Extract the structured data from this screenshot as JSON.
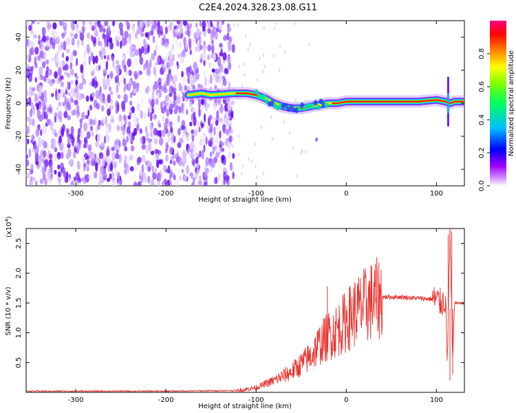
{
  "title": "C2E4.2024.328.23.08.G11",
  "chart_data": [
    {
      "type": "heatmap",
      "xlabel": "Height of straight line (km)",
      "ylabel": "Frequency (Hz)",
      "xlim": [
        -355,
        131
      ],
      "ylim": [
        -50,
        50
      ],
      "xticks": [
        -300,
        -200,
        -100,
        0,
        100
      ],
      "yticks": [
        -40,
        -20,
        0,
        20,
        40
      ],
      "colorbar": {
        "label": "Normalized spectral amplitude",
        "range": [
          0,
          1
        ],
        "ticks": [
          "0.0",
          "0.2",
          "0.4",
          "0.6",
          "0.8"
        ],
        "colors": [
          "#ffffff",
          "#a000ff",
          "#0000ff",
          "#00c0ff",
          "#00ff00",
          "#ffff00",
          "#ff8000",
          "#ff0000",
          "#ff0080"
        ]
      },
      "noise_region_x": [
        -355,
        -125
      ],
      "ridge": {
        "x": [
          -175,
          -160,
          -150,
          -125,
          -110,
          -100,
          -90,
          -80,
          -70,
          -60,
          -50,
          -40,
          -30,
          -20,
          -10,
          0,
          20,
          40,
          60,
          80,
          100,
          110,
          115,
          120,
          131
        ],
        "y": [
          5,
          6,
          5,
          6,
          6,
          5,
          3,
          0,
          -2,
          -3,
          -3,
          -2,
          -1,
          0,
          0,
          1,
          1,
          1,
          1,
          1,
          2,
          1,
          0,
          1,
          1
        ]
      }
    },
    {
      "type": "line",
      "xlabel": "Height of straight line (km)",
      "ylabel": "SNR (10 * v/v)",
      "yscale_label": "(x10",
      "yscale_exponent": "4",
      "xlim": [
        -355,
        131
      ],
      "ylim": [
        0,
        2.75
      ],
      "xticks": [
        -300,
        -200,
        -100,
        0,
        100
      ],
      "yticks": [
        "0.5",
        "1.0",
        "1.5",
        "2.0",
        "2.5"
      ],
      "line_color": "#e8322e",
      "series": [
        {
          "x": [
            -355,
            -300,
            -200,
            -120,
            -100,
            -80,
            -60,
            -40,
            -30,
            -20,
            -10,
            0,
            10,
            20,
            30,
            40,
            60,
            80,
            100,
            105,
            110,
            112,
            115,
            118,
            120,
            125,
            131
          ],
          "y": [
            0.02,
            0.02,
            0.02,
            0.03,
            0.08,
            0.2,
            0.35,
            0.6,
            0.8,
            0.95,
            1.05,
            1.2,
            1.35,
            1.45,
            1.55,
            1.6,
            1.6,
            1.58,
            1.56,
            1.5,
            1.55,
            0.5,
            2.6,
            0.5,
            1.5,
            1.5,
            1.5
          ]
        }
      ]
    }
  ]
}
